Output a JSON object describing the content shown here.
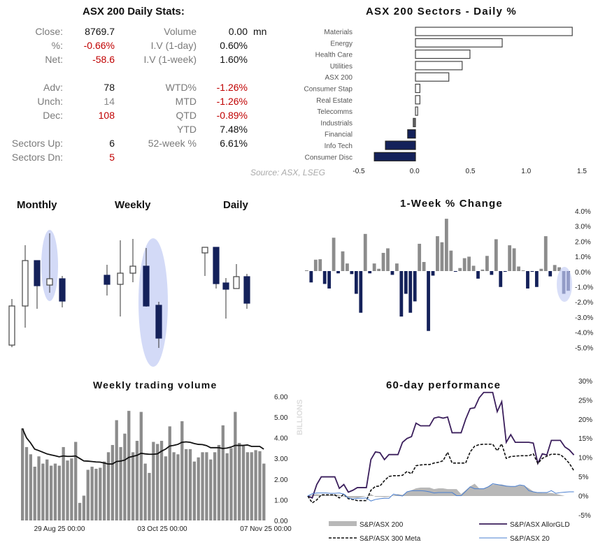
{
  "stats": {
    "title": "ASX 200 Daily Stats:",
    "left": [
      {
        "label": "Close:",
        "value": "8769.7",
        "tone": "normal"
      },
      {
        "label": "%:",
        "value": "-0.66%",
        "tone": "neg"
      },
      {
        "label": "Net:",
        "value": "-58.6",
        "tone": "neg"
      },
      {
        "label": "Adv:",
        "value": "78",
        "tone": "normal"
      },
      {
        "label": "Unch:",
        "value": "14",
        "tone": "gray"
      },
      {
        "label": "Dec:",
        "value": "108",
        "tone": "neg"
      },
      {
        "label": "",
        "value": "",
        "tone": "normal"
      },
      {
        "label": "Sectors Up:",
        "value": "6",
        "tone": "normal"
      },
      {
        "label": "Sectors Dn:",
        "value": "5",
        "tone": "neg"
      }
    ],
    "right": [
      {
        "label": "Volume",
        "value": "0.00",
        "unit": "mn",
        "tone": "normal"
      },
      {
        "label": "I.V (1-day)",
        "value": "0.60%",
        "tone": "normal"
      },
      {
        "label": "I.V (1-week)",
        "value": "1.60%",
        "tone": "normal"
      },
      {
        "label": "WTD%",
        "value": "-1.26%",
        "tone": "neg"
      },
      {
        "label": "MTD",
        "value": "-1.26%",
        "tone": "neg"
      },
      {
        "label": "QTD",
        "value": "-0.89%",
        "tone": "neg"
      },
      {
        "label": "YTD",
        "value": "7.48%",
        "tone": "normal"
      },
      {
        "label": "52-week %",
        "value": "6.61%",
        "tone": "normal"
      }
    ],
    "source": "Source: ASX, LSEG"
  },
  "candles": {
    "monthly_label": "Monthly",
    "weekly_label": "Weekly",
    "daily_label": "Daily",
    "up_color": "#ffffff",
    "down_color": "#14215a",
    "highlight_color": "#d3daf7"
  },
  "colors": {
    "navy": "#14215a",
    "gray_bar": "#8c8c8c",
    "purple": "#3b1f5c",
    "blue_line": "#4a7fd0",
    "area": "#b8b8b8"
  },
  "chart_data": [
    {
      "type": "bar",
      "orientation": "horizontal",
      "title": "ASX 200 Sectors - Daily %",
      "categories": [
        "Materials",
        "Energy",
        "Health Care",
        "Utilities",
        "ASX 200",
        "Consumer Stap",
        "Real Estate",
        "Telecomms",
        "Industrials",
        "Financial",
        "Info Tech",
        "Consumer Disc"
      ],
      "values": [
        1.41,
        0.78,
        0.49,
        0.42,
        0.3,
        0.04,
        0.04,
        0.02,
        -0.02,
        -0.07,
        -0.27,
        -0.37
      ],
      "xlim": [
        -0.5,
        1.5
      ],
      "xticks": [
        "-0.5",
        "0.0",
        "0.5",
        "1.0",
        "1.5"
      ]
    },
    {
      "type": "bar",
      "title": "1-Week % Change",
      "values": [
        0.05,
        -0.75,
        0.75,
        0.78,
        -0.85,
        -1.15,
        2.2,
        -0.15,
        1.3,
        0.5,
        -0.2,
        -1.5,
        -2.75,
        2.45,
        -0.15,
        0.5,
        0.15,
        1.2,
        1.5,
        -0.25,
        0.5,
        -3.0,
        -1.5,
        -2.75,
        -2.0,
        1.8,
        0.6,
        -3.95,
        -0.3,
        2.3,
        1.9,
        3.45,
        1.35,
        -0.05,
        0.2,
        0.85,
        0.95,
        0.35,
        -0.5,
        0.1,
        1.0,
        -0.25,
        2.1,
        -1.05,
        -0.05,
        1.7,
        1.5,
        0.3,
        0.05,
        -1.15,
        -0.05,
        -1.05,
        0.15,
        2.3,
        -0.35,
        0.4,
        0.25,
        -1.5,
        -1.3
      ],
      "ylim": [
        -5,
        4
      ],
      "yticks": [
        "4.0%",
        "3.0%",
        "2.0%",
        "1.0%",
        "0.0%",
        "-1.0%",
        "-2.0%",
        "-3.0%",
        "-4.0%",
        "-5.0%"
      ]
    },
    {
      "type": "bar",
      "title": "Weekly trading volume",
      "ylabel": "BILLIONS",
      "values": [
        4.45,
        3.55,
        3.2,
        2.6,
        3.1,
        2.75,
        2.95,
        2.65,
        2.75,
        2.65,
        3.55,
        2.9,
        3.0,
        3.8,
        0.85,
        1.2,
        2.45,
        2.6,
        2.5,
        2.55,
        2.85,
        3.3,
        3.65,
        4.85,
        3.55,
        4.2,
        5.3,
        3.3,
        3.85,
        5.25,
        2.75,
        2.3,
        3.8,
        3.7,
        3.85,
        3.1,
        4.55,
        3.3,
        3.2,
        4.8,
        3.45,
        3.45,
        2.85,
        3.05,
        3.3,
        3.3,
        2.95,
        3.3,
        3.65,
        4.6,
        3.25,
        3.5,
        5.25,
        3.75,
        3.6,
        3.3,
        3.3,
        3.4,
        3.35,
        2.75
      ],
      "moving_average": [
        4.45,
        4.0,
        3.75,
        3.45,
        3.38,
        3.3,
        3.22,
        3.17,
        3.13,
        3.08,
        3.12,
        3.1,
        3.1,
        3.12,
        3.0,
        2.88,
        2.87,
        2.85,
        2.83,
        2.82,
        2.78,
        2.73,
        2.73,
        2.85,
        2.87,
        2.92,
        3.05,
        3.1,
        3.15,
        3.25,
        3.22,
        3.2,
        3.2,
        3.22,
        3.35,
        3.45,
        3.6,
        3.63,
        3.68,
        3.78,
        3.8,
        3.78,
        3.72,
        3.68,
        3.67,
        3.62,
        3.52,
        3.52,
        3.52,
        3.48,
        3.5,
        3.55,
        3.63,
        3.63,
        3.63,
        3.65,
        3.58,
        3.58,
        3.58,
        3.45
      ],
      "ylim": [
        0,
        6
      ],
      "yticks": [
        "0.00",
        "1.00",
        "2.00",
        "3.00",
        "4.00",
        "5.00",
        "6.00"
      ],
      "xticks": [
        "29 Aug 25 00:00",
        "03 Oct 25 00:00",
        "07 Nov 25 00:00"
      ]
    },
    {
      "type": "line",
      "title": "60-day performance",
      "ylim": [
        -5,
        30
      ],
      "yticks": [
        "30%",
        "25%",
        "20%",
        "15%",
        "10%",
        "5%",
        "0%",
        "-5%"
      ],
      "legend_position": "bottom",
      "series": [
        {
          "name": "S&P/ASX 200",
          "style": "area",
          "values": [
            0,
            0.3,
            0.5,
            0.3,
            0.3,
            0.3,
            0.4,
            0.3,
            -0.2,
            -0.5,
            -0.5,
            -0.5,
            -0.3,
            0,
            0.5,
            -0.2,
            -0.2,
            -0.3,
            -0.2,
            0.2,
            0.5,
            0.3,
            1,
            1.5,
            2,
            2.2,
            2.2,
            2.2,
            1.8,
            2,
            2,
            1.8,
            1.8,
            1.8,
            0.5,
            1.5,
            2.5,
            3.2,
            2,
            2,
            2.5,
            3,
            3,
            3,
            2.7,
            2.5,
            2.5,
            2.8,
            2.7,
            2,
            1.2,
            0.9,
            0.8,
            0.8,
            0.8,
            0.6,
            0.3,
            0,
            0,
            0
          ]
        },
        {
          "name": "S&P/ASX AllorGLD",
          "style": "solid",
          "values": [
            0,
            -0.5,
            3,
            5,
            5,
            5,
            5,
            2,
            3,
            1,
            1.5,
            2.2,
            2.2,
            2.2,
            9.5,
            11.5,
            11.3,
            9.5,
            10.8,
            10.8,
            10.8,
            14,
            15,
            15.5,
            19,
            18.3,
            18.3,
            18.3,
            20.3,
            20.6,
            20.3,
            20.6,
            16.5,
            16.5,
            16.5,
            20,
            22.8,
            23,
            25.6,
            27,
            27,
            27,
            22,
            24.6,
            14,
            16,
            14,
            14,
            14,
            14,
            13.8,
            8.5,
            11,
            10.7,
            14.5,
            14.5,
            14.5,
            12.8,
            12,
            10.7
          ]
        },
        {
          "name": "S&P/ASX 300 Meta",
          "style": "dashed",
          "values": [
            0,
            -1.8,
            -1,
            0.3,
            0.3,
            0.3,
            0.3,
            -0.5,
            0.5,
            -0.7,
            -0.9,
            -1.2,
            -1.2,
            -1.2,
            1.5,
            2.5,
            2.6,
            4,
            5.1,
            5.3,
            5.3,
            5.4,
            6.4,
            5.8,
            7.9,
            8.1,
            8.2,
            8.2,
            8.6,
            8.8,
            9.2,
            11.4,
            8.6,
            8.6,
            8.6,
            8.6,
            11.5,
            13,
            13.4,
            13.5,
            13.5,
            13.5,
            11.8,
            13.6,
            9.8,
            10.3,
            10.4,
            10.5,
            10.5,
            10.5,
            11,
            8.5,
            9.8,
            10.4,
            10.9,
            10.9,
            10.8,
            9.8,
            8.5,
            6.6
          ]
        },
        {
          "name": "S&P/ASX 20",
          "style": "thin",
          "values": [
            0,
            0.6,
            0.8,
            0.8,
            0.8,
            0.7,
            0.7,
            0.8,
            0.5,
            -0.5,
            -0.8,
            -0.6,
            -0.6,
            -0.5,
            -1.3,
            -0.9,
            -0.7,
            -0.6,
            -0.6,
            0.5,
            0.2,
            0,
            1.1,
            1.4,
            1.4,
            1.4,
            1.3,
            1.1,
            0.8,
            0.9,
            0.9,
            0.9,
            0.9,
            0.1,
            0.1,
            1.2,
            2.4,
            1.9,
            1.9,
            1.9,
            2.4,
            3.2,
            3.0,
            2.8,
            2.6,
            2.5,
            2.5,
            2.9,
            2.7,
            1.4,
            1.1,
            0.9,
            0.9,
            0.9,
            1.4,
            0.7,
            0.9,
            1.0,
            1.1,
            1.1
          ]
        }
      ]
    }
  ]
}
